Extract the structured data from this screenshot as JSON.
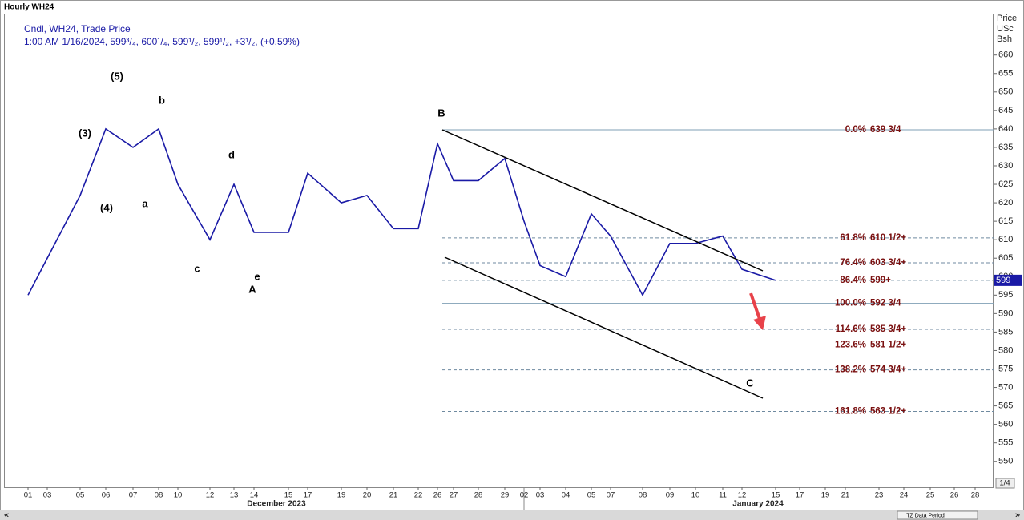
{
  "header": {
    "title": "Hourly WH24",
    "legend_line1": "Cndl, WH24, Trade Price",
    "legend_line2": "1:00 AM 1/16/2024, 599³/₄, 600¹/₄, 599¹/₂, 599¹/₂, +3¹/₂, (+0.59%)",
    "axis_title": [
      "Price",
      "USc",
      "Bsh"
    ]
  },
  "chart_data": {
    "type": "line",
    "color": "#1a1aa6",
    "categories": [
      "01",
      "03",
      "05",
      "06",
      "07",
      "08",
      "10",
      "12",
      "13",
      "14",
      "15",
      "17",
      "19",
      "20",
      "21",
      "22",
      "26",
      "27",
      "28",
      "29",
      "02",
      "03",
      "04",
      "05",
      "07",
      "08",
      "09",
      "10",
      "11",
      "12",
      "15",
      "17",
      "19",
      "21",
      "23",
      "24",
      "25",
      "26",
      "28"
    ],
    "months": [
      "December 2023",
      "January 2024"
    ],
    "values": [
      595,
      605,
      622,
      640,
      635,
      640,
      625,
      610,
      625,
      612,
      612,
      628,
      620,
      622,
      613,
      613,
      636,
      626,
      626,
      632,
      615,
      603,
      600,
      617,
      611,
      595,
      609,
      609,
      611,
      602,
      599,
      null,
      null,
      null,
      null,
      null,
      null,
      null,
      null
    ],
    "ylim": [
      543,
      671
    ],
    "yticks": [
      550,
      555,
      560,
      565,
      570,
      575,
      580,
      585,
      590,
      595,
      600,
      605,
      610,
      615,
      620,
      625,
      630,
      635,
      640,
      645,
      650,
      655,
      660
    ],
    "last_price": 599,
    "fib_levels": [
      {
        "label": "0.0%",
        "price_label": "639 3/4",
        "value": 639.75
      },
      {
        "label": "61.8%",
        "price_label": "610 1/2+",
        "value": 610.5
      },
      {
        "label": "76.4%",
        "price_label": "603 3/4+",
        "value": 603.75
      },
      {
        "label": "86.4%",
        "price_label": "599+",
        "value": 599
      },
      {
        "label": "100.0%",
        "price_label": "592 3/4",
        "value": 592.75
      },
      {
        "label": "114.6%",
        "price_label": "585 3/4+",
        "value": 585.75
      },
      {
        "label": "123.6%",
        "price_label": "581 1/2+",
        "value": 581.5
      },
      {
        "label": "138.2%",
        "price_label": "574 3/4+",
        "value": 574.75
      },
      {
        "label": "161.8%",
        "price_label": "563 1/2+",
        "value": 563.5
      }
    ],
    "wave_labels": [
      "(5)",
      "b",
      "(3)",
      "(4)",
      "a",
      "d",
      "c",
      "e",
      "A",
      "B",
      "C"
    ]
  },
  "ui": {
    "zoom_label": "1/4",
    "scroll_label": "TZ Data Period",
    "scroll_left": "«",
    "scroll_right": "»"
  }
}
